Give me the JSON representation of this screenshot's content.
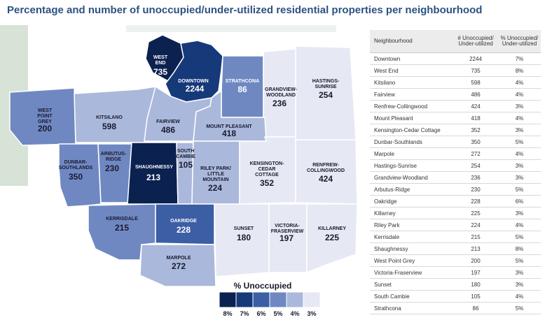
{
  "title": "Percentage and number of unoccupied/under-utilized residential properties per neighbourhood",
  "colors": {
    "pct8": "#0b2150",
    "pct7": "#16397a",
    "pct6": "#3c5ea4",
    "pct5": "#6f88c2",
    "pct4": "#aab8db",
    "pct3": "#e6e8f3",
    "land": "#d6e3d6",
    "water": "#ffffff"
  },
  "map": {
    "neighbourhoods": [
      {
        "key": "west-end",
        "name": "WEST END",
        "count": "735",
        "pct": 8
      },
      {
        "key": "downtown",
        "name": "DOWNTOWN",
        "count": "2244",
        "pct": 7
      },
      {
        "key": "strathcona",
        "name": "STRATHCONA",
        "count": "86",
        "pct": 5
      },
      {
        "key": "grandview-woodland",
        "name": "GRANDVIEW- WOODLAND",
        "count": "236",
        "pct": 3
      },
      {
        "key": "hastings-sunrise",
        "name": "HASTINGS- SUNRISE",
        "count": "254",
        "pct": 3
      },
      {
        "key": "west-point-grey",
        "name": "WEST POINT GREY",
        "count": "200",
        "pct": 5
      },
      {
        "key": "kitsilano",
        "name": "KITSILANO",
        "count": "598",
        "pct": 4
      },
      {
        "key": "fairview",
        "name": "FAIRVIEW",
        "count": "486",
        "pct": 4
      },
      {
        "key": "mount-pleasant",
        "name": "MOUNT PLEASANT",
        "count": "418",
        "pct": 4
      },
      {
        "key": "dunbar-southlands",
        "name": "DUNBAR- SOUTHLANDS",
        "count": "350",
        "pct": 5
      },
      {
        "key": "arbutus-ridge",
        "name": "ARBUTUS- RIDGE",
        "count": "230",
        "pct": 5
      },
      {
        "key": "shaughnessy",
        "name": "SHAUGHNESSY",
        "count": "213",
        "pct": 8
      },
      {
        "key": "south-cambie",
        "name": "SOUTH CAMBIE",
        "count": "105",
        "pct": 4
      },
      {
        "key": "riley-park",
        "name": "RILEY PARK/ LITTLE MOUNTAIN",
        "count": "224",
        "pct": 4
      },
      {
        "key": "kensington-cedar-cottage",
        "name": "KENSINGTON- CEDAR COTTAGE",
        "count": "352",
        "pct": 3
      },
      {
        "key": "renfrew-collingwood",
        "name": "RENFREW- COLLINGWOOD",
        "count": "424",
        "pct": 3
      },
      {
        "key": "kerrisdale",
        "name": "KERRISDALE",
        "count": "215",
        "pct": 5
      },
      {
        "key": "oakridge",
        "name": "OAKRIDGE",
        "count": "228",
        "pct": 6
      },
      {
        "key": "marpole",
        "name": "MARPOLE",
        "count": "272",
        "pct": 4
      },
      {
        "key": "sunset",
        "name": "SUNSET",
        "count": "180",
        "pct": 3
      },
      {
        "key": "victoria-fraserview",
        "name": "VICTORIA- FRASERVIEW",
        "count": "197",
        "pct": 3
      },
      {
        "key": "killarney",
        "name": "KILLARNEY",
        "count": "225",
        "pct": 3
      }
    ],
    "legend": {
      "title": "% Unoccupied",
      "labels": [
        "8%",
        "7%",
        "6%",
        "5%",
        "4%",
        "3%"
      ]
    }
  },
  "table": {
    "headers": {
      "name": "Neighbourhood",
      "count": "# Unoccupied/ Under-utilized",
      "pct": "% Unoccupied/ Under-utilized"
    },
    "rows": [
      {
        "name": "Downtown",
        "count": "2244",
        "pct": "7%"
      },
      {
        "name": "West End",
        "count": "735",
        "pct": "8%"
      },
      {
        "name": "Kitsilano",
        "count": "598",
        "pct": "4%"
      },
      {
        "name": "Fairview",
        "count": "486",
        "pct": "4%"
      },
      {
        "name": "Renfrew-Collingwood",
        "count": "424",
        "pct": "3%"
      },
      {
        "name": "Mount Pleasant",
        "count": "418",
        "pct": "4%"
      },
      {
        "name": "Kensington-Cedar Cottage",
        "count": "352",
        "pct": "3%"
      },
      {
        "name": "Dunbar-Southlands",
        "count": "350",
        "pct": "5%"
      },
      {
        "name": "Marpole",
        "count": "272",
        "pct": "4%"
      },
      {
        "name": "Hastings-Sunrise",
        "count": "254",
        "pct": "3%"
      },
      {
        "name": "Grandview-Woodland",
        "count": "236",
        "pct": "3%"
      },
      {
        "name": "Arbutus-Ridge",
        "count": "230",
        "pct": "5%"
      },
      {
        "name": "Oakridge",
        "count": "228",
        "pct": "6%"
      },
      {
        "name": "Killarney",
        "count": "225",
        "pct": "3%"
      },
      {
        "name": "Riley Park",
        "count": "224",
        "pct": "4%"
      },
      {
        "name": "Kerrisdale",
        "count": "215",
        "pct": "5%"
      },
      {
        "name": "Shaughnessy",
        "count": "213",
        "pct": "8%"
      },
      {
        "name": "West Point Grey",
        "count": "200",
        "pct": "5%"
      },
      {
        "name": "Victoria-Fraserview",
        "count": "197",
        "pct": "3%"
      },
      {
        "name": "Sunset",
        "count": "180",
        "pct": "3%"
      },
      {
        "name": "South Cambie",
        "count": "105",
        "pct": "4%"
      },
      {
        "name": "Strathcona",
        "count": "86",
        "pct": "5%"
      }
    ]
  }
}
